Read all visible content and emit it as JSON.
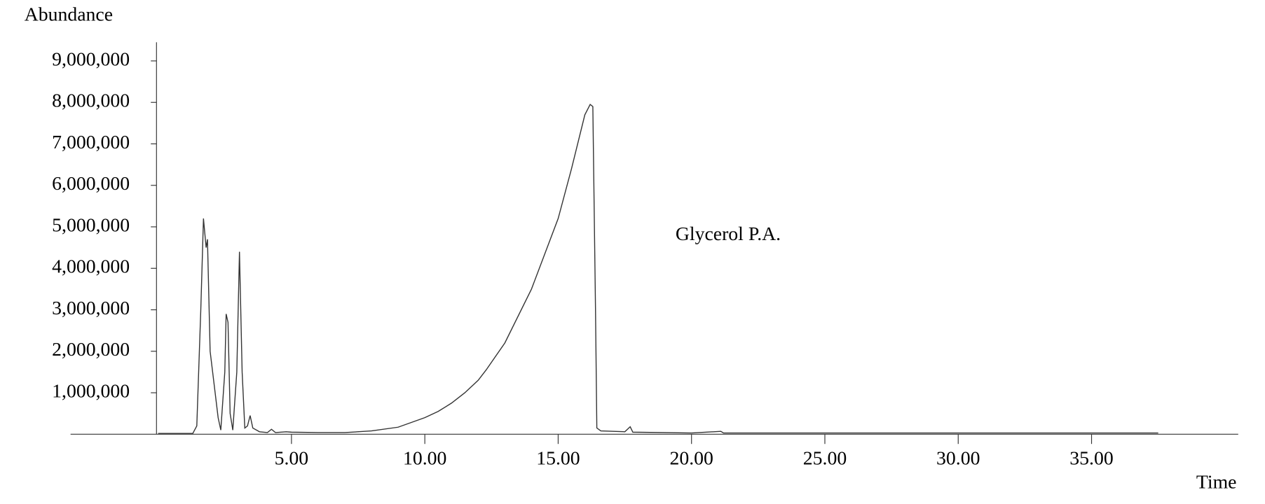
{
  "chart_data": {
    "type": "line",
    "y_label": "Abundance",
    "x_label": "Time",
    "annotation": "Glycerol P.A.",
    "color": "#333333",
    "x": [
      0.0,
      1.3,
      1.45,
      1.6,
      1.7,
      1.8,
      1.85,
      1.95,
      2.1,
      2.25,
      2.35,
      2.5,
      2.55,
      2.62,
      2.7,
      2.8,
      2.95,
      3.05,
      3.15,
      3.25,
      3.35,
      3.45,
      3.55,
      3.8,
      4.1,
      4.25,
      4.4,
      4.8,
      5.0,
      6.0,
      7.0,
      8.0,
      9.0,
      10.0,
      10.5,
      11.0,
      11.5,
      12.0,
      12.3,
      13.0,
      14.0,
      15.0,
      15.5,
      16.0,
      16.2,
      16.3,
      16.4,
      16.45,
      16.6,
      17.5,
      17.7,
      17.8,
      20.0,
      21.1,
      21.2,
      30.0,
      37.5
    ],
    "values": [
      20000,
      20000,
      200000,
      3000000,
      5200000,
      4500000,
      4700000,
      2000000,
      1200000,
      400000,
      100000,
      1500000,
      2900000,
      2700000,
      500000,
      100000,
      1500000,
      4400000,
      1500000,
      150000,
      200000,
      450000,
      150000,
      60000,
      40000,
      120000,
      40000,
      60000,
      50000,
      40000,
      40000,
      80000,
      170000,
      400000,
      550000,
      750000,
      1000000,
      1300000,
      1550000,
      2200000,
      3500000,
      5200000,
      6400000,
      7700000,
      7950000,
      7900000,
      3000000,
      150000,
      80000,
      60000,
      180000,
      50000,
      30000,
      70000,
      30000,
      30000,
      30000
    ],
    "xlim": [
      0,
      40.5
    ],
    "ylim": [
      0,
      9450000
    ],
    "xticks": [
      {
        "value": 5,
        "label": "5.00"
      },
      {
        "value": 10,
        "label": "10.00"
      },
      {
        "value": 15,
        "label": "15.00"
      },
      {
        "value": 20,
        "label": "20.00"
      },
      {
        "value": 25,
        "label": "25.00"
      },
      {
        "value": 30,
        "label": "30.00"
      },
      {
        "value": 35,
        "label": "35.00"
      }
    ],
    "yticks": [
      {
        "value": 1000000,
        "label": "1,000,000"
      },
      {
        "value": 2000000,
        "label": "2,000,000"
      },
      {
        "value": 3000000,
        "label": "3,000,000"
      },
      {
        "value": 4000000,
        "label": "4,000,000"
      },
      {
        "value": 5000000,
        "label": "5,000,000"
      },
      {
        "value": 6000000,
        "label": "6,000,000"
      },
      {
        "value": 7000000,
        "label": "7,000,000"
      },
      {
        "value": 8000000,
        "label": "8,000,000"
      },
      {
        "value": 9000000,
        "label": "9,000,000"
      }
    ]
  }
}
